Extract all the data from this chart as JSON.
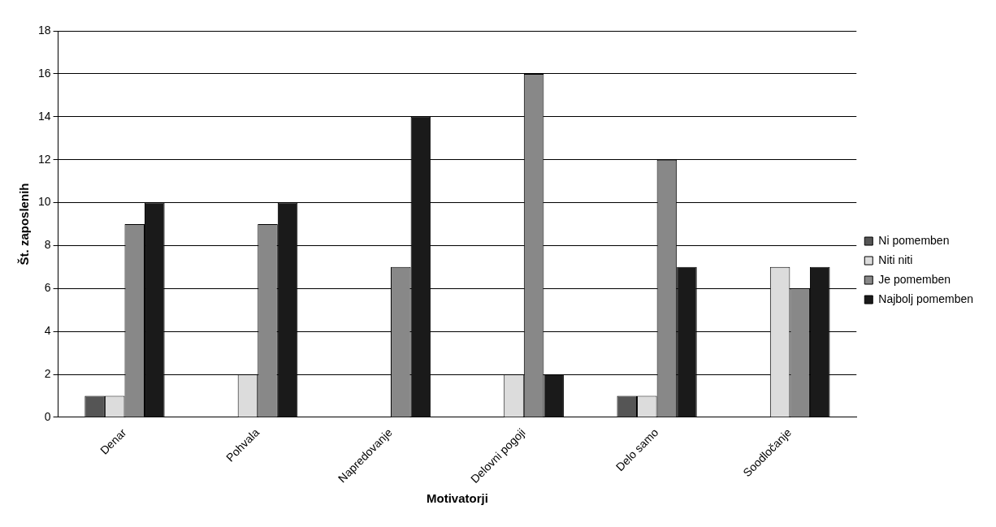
{
  "chart_data": {
    "type": "bar",
    "xlabel": "Motivatorji",
    "ylabel": "Št. zaposlenih",
    "categories": [
      "Denar",
      "Pohvala",
      "Napredovanje",
      "Delovni pogoji",
      "Delo samo",
      "Soodločanje"
    ],
    "series": [
      {
        "name": "Ni pomemben",
        "color": "#555555",
        "values": [
          1,
          0,
          0,
          0,
          1,
          0
        ]
      },
      {
        "name": "Niti niti",
        "color": "#dcdcdc",
        "values": [
          1,
          2,
          0,
          2,
          1,
          7
        ]
      },
      {
        "name": "Je pomemben",
        "color": "#888888",
        "values": [
          9,
          9,
          7,
          16,
          12,
          6
        ]
      },
      {
        "name": "Najbolj pomemben",
        "color": "#1a1a1a",
        "values": [
          10,
          10,
          14,
          2,
          7,
          7
        ]
      }
    ],
    "ylim": [
      0,
      18
    ],
    "yticks": [
      0,
      2,
      4,
      6,
      8,
      10,
      12,
      14,
      16,
      18
    ],
    "grid": "y",
    "legend": "right"
  }
}
